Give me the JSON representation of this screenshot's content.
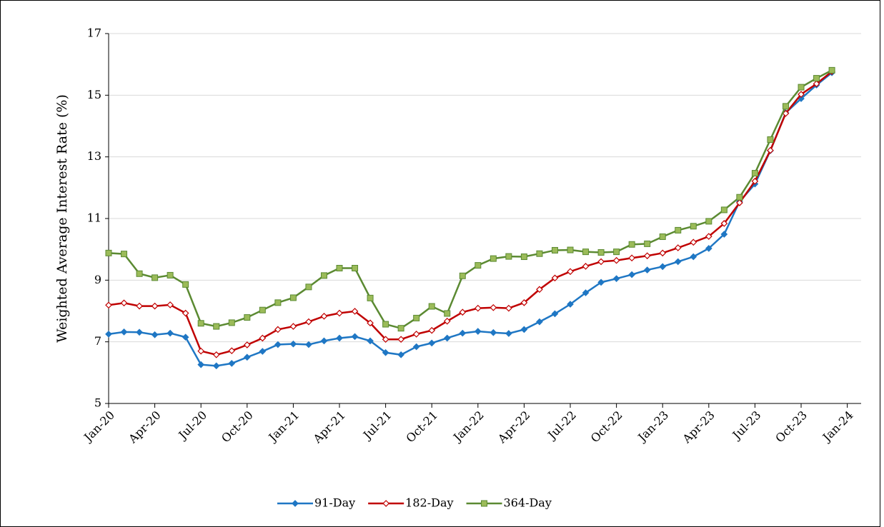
{
  "chart_data": {
    "type": "line",
    "y_label": "Weighted Average Interest Rate (%)",
    "x": [
      0,
      1,
      2,
      3,
      4,
      5,
      6,
      7,
      8,
      9,
      10,
      11,
      12,
      13,
      14,
      15,
      16,
      17,
      18,
      19,
      20,
      21,
      22,
      23,
      24,
      25,
      26,
      27,
      28,
      29,
      30,
      31,
      32,
      33,
      34,
      35,
      36,
      37,
      38,
      39,
      40,
      41,
      42,
      43,
      44,
      45,
      46,
      47
    ],
    "xlim": [
      0,
      48.9
    ],
    "xticks": [
      {
        "value": 0,
        "label": "Jan-20"
      },
      {
        "value": 3,
        "label": "Apr-20"
      },
      {
        "value": 6,
        "label": "Jul-20"
      },
      {
        "value": 9,
        "label": "Oct-20"
      },
      {
        "value": 12,
        "label": "Jan-21"
      },
      {
        "value": 15,
        "label": "Apr-21"
      },
      {
        "value": 18,
        "label": "Jul-21"
      },
      {
        "value": 21,
        "label": "Oct-21"
      },
      {
        "value": 24,
        "label": "Jan-22"
      },
      {
        "value": 27,
        "label": "Apr-22"
      },
      {
        "value": 30,
        "label": "Jul-22"
      },
      {
        "value": 33,
        "label": "Oct-22"
      },
      {
        "value": 36,
        "label": "Jan-23"
      },
      {
        "value": 39,
        "label": "Apr-23"
      },
      {
        "value": 42,
        "label": "Jul-23"
      },
      {
        "value": 45,
        "label": "Oct-23"
      },
      {
        "value": 48,
        "label": "Jan-24"
      }
    ],
    "ylim": [
      5,
      17
    ],
    "yticks": [
      5,
      7,
      9,
      11,
      13,
      15,
      17
    ],
    "grid": true,
    "legend": "bottom",
    "series": [
      {
        "name": "91-Day",
        "color": "#1f77c4",
        "marker": "diamond",
        "values": [
          7.25,
          7.32,
          7.31,
          7.23,
          7.28,
          7.15,
          6.26,
          6.22,
          6.3,
          6.5,
          6.69,
          6.91,
          6.93,
          6.91,
          7.03,
          7.12,
          7.17,
          7.03,
          6.65,
          6.58,
          6.84,
          6.96,
          7.12,
          7.28,
          7.34,
          7.3,
          7.27,
          7.4,
          7.65,
          7.91,
          8.22,
          8.59,
          8.93,
          9.05,
          9.18,
          9.33,
          9.44,
          9.6,
          9.76,
          10.03,
          10.49,
          11.55,
          12.12,
          13.2,
          14.43,
          14.89,
          15.33,
          15.73
        ]
      },
      {
        "name": "182-Day",
        "color": "#c00000",
        "marker": "diamond-open",
        "values": [
          8.19,
          8.26,
          8.16,
          8.16,
          8.2,
          7.93,
          6.7,
          6.58,
          6.71,
          6.9,
          7.12,
          7.4,
          7.5,
          7.65,
          7.83,
          7.93,
          7.99,
          7.61,
          7.08,
          7.08,
          7.25,
          7.37,
          7.67,
          7.96,
          8.09,
          8.11,
          8.09,
          8.27,
          8.7,
          9.07,
          9.28,
          9.45,
          9.6,
          9.64,
          9.72,
          9.79,
          9.88,
          10.05,
          10.23,
          10.42,
          10.84,
          11.51,
          12.21,
          13.21,
          14.41,
          15.03,
          15.37,
          15.77
        ]
      },
      {
        "name": "364-Day",
        "color": "#5b8a32",
        "marker": "square",
        "values": [
          9.88,
          9.85,
          9.21,
          9.08,
          9.16,
          8.86,
          7.6,
          7.5,
          7.62,
          7.79,
          8.03,
          8.27,
          8.43,
          8.78,
          9.15,
          9.39,
          9.39,
          8.42,
          7.57,
          7.44,
          7.77,
          8.15,
          7.92,
          9.14,
          9.48,
          9.7,
          9.77,
          9.76,
          9.86,
          9.97,
          9.98,
          9.92,
          9.9,
          9.92,
          10.16,
          10.18,
          10.41,
          10.62,
          10.75,
          10.91,
          11.28,
          11.69,
          12.47,
          13.56,
          14.64,
          15.26,
          15.55,
          15.81
        ]
      }
    ]
  }
}
